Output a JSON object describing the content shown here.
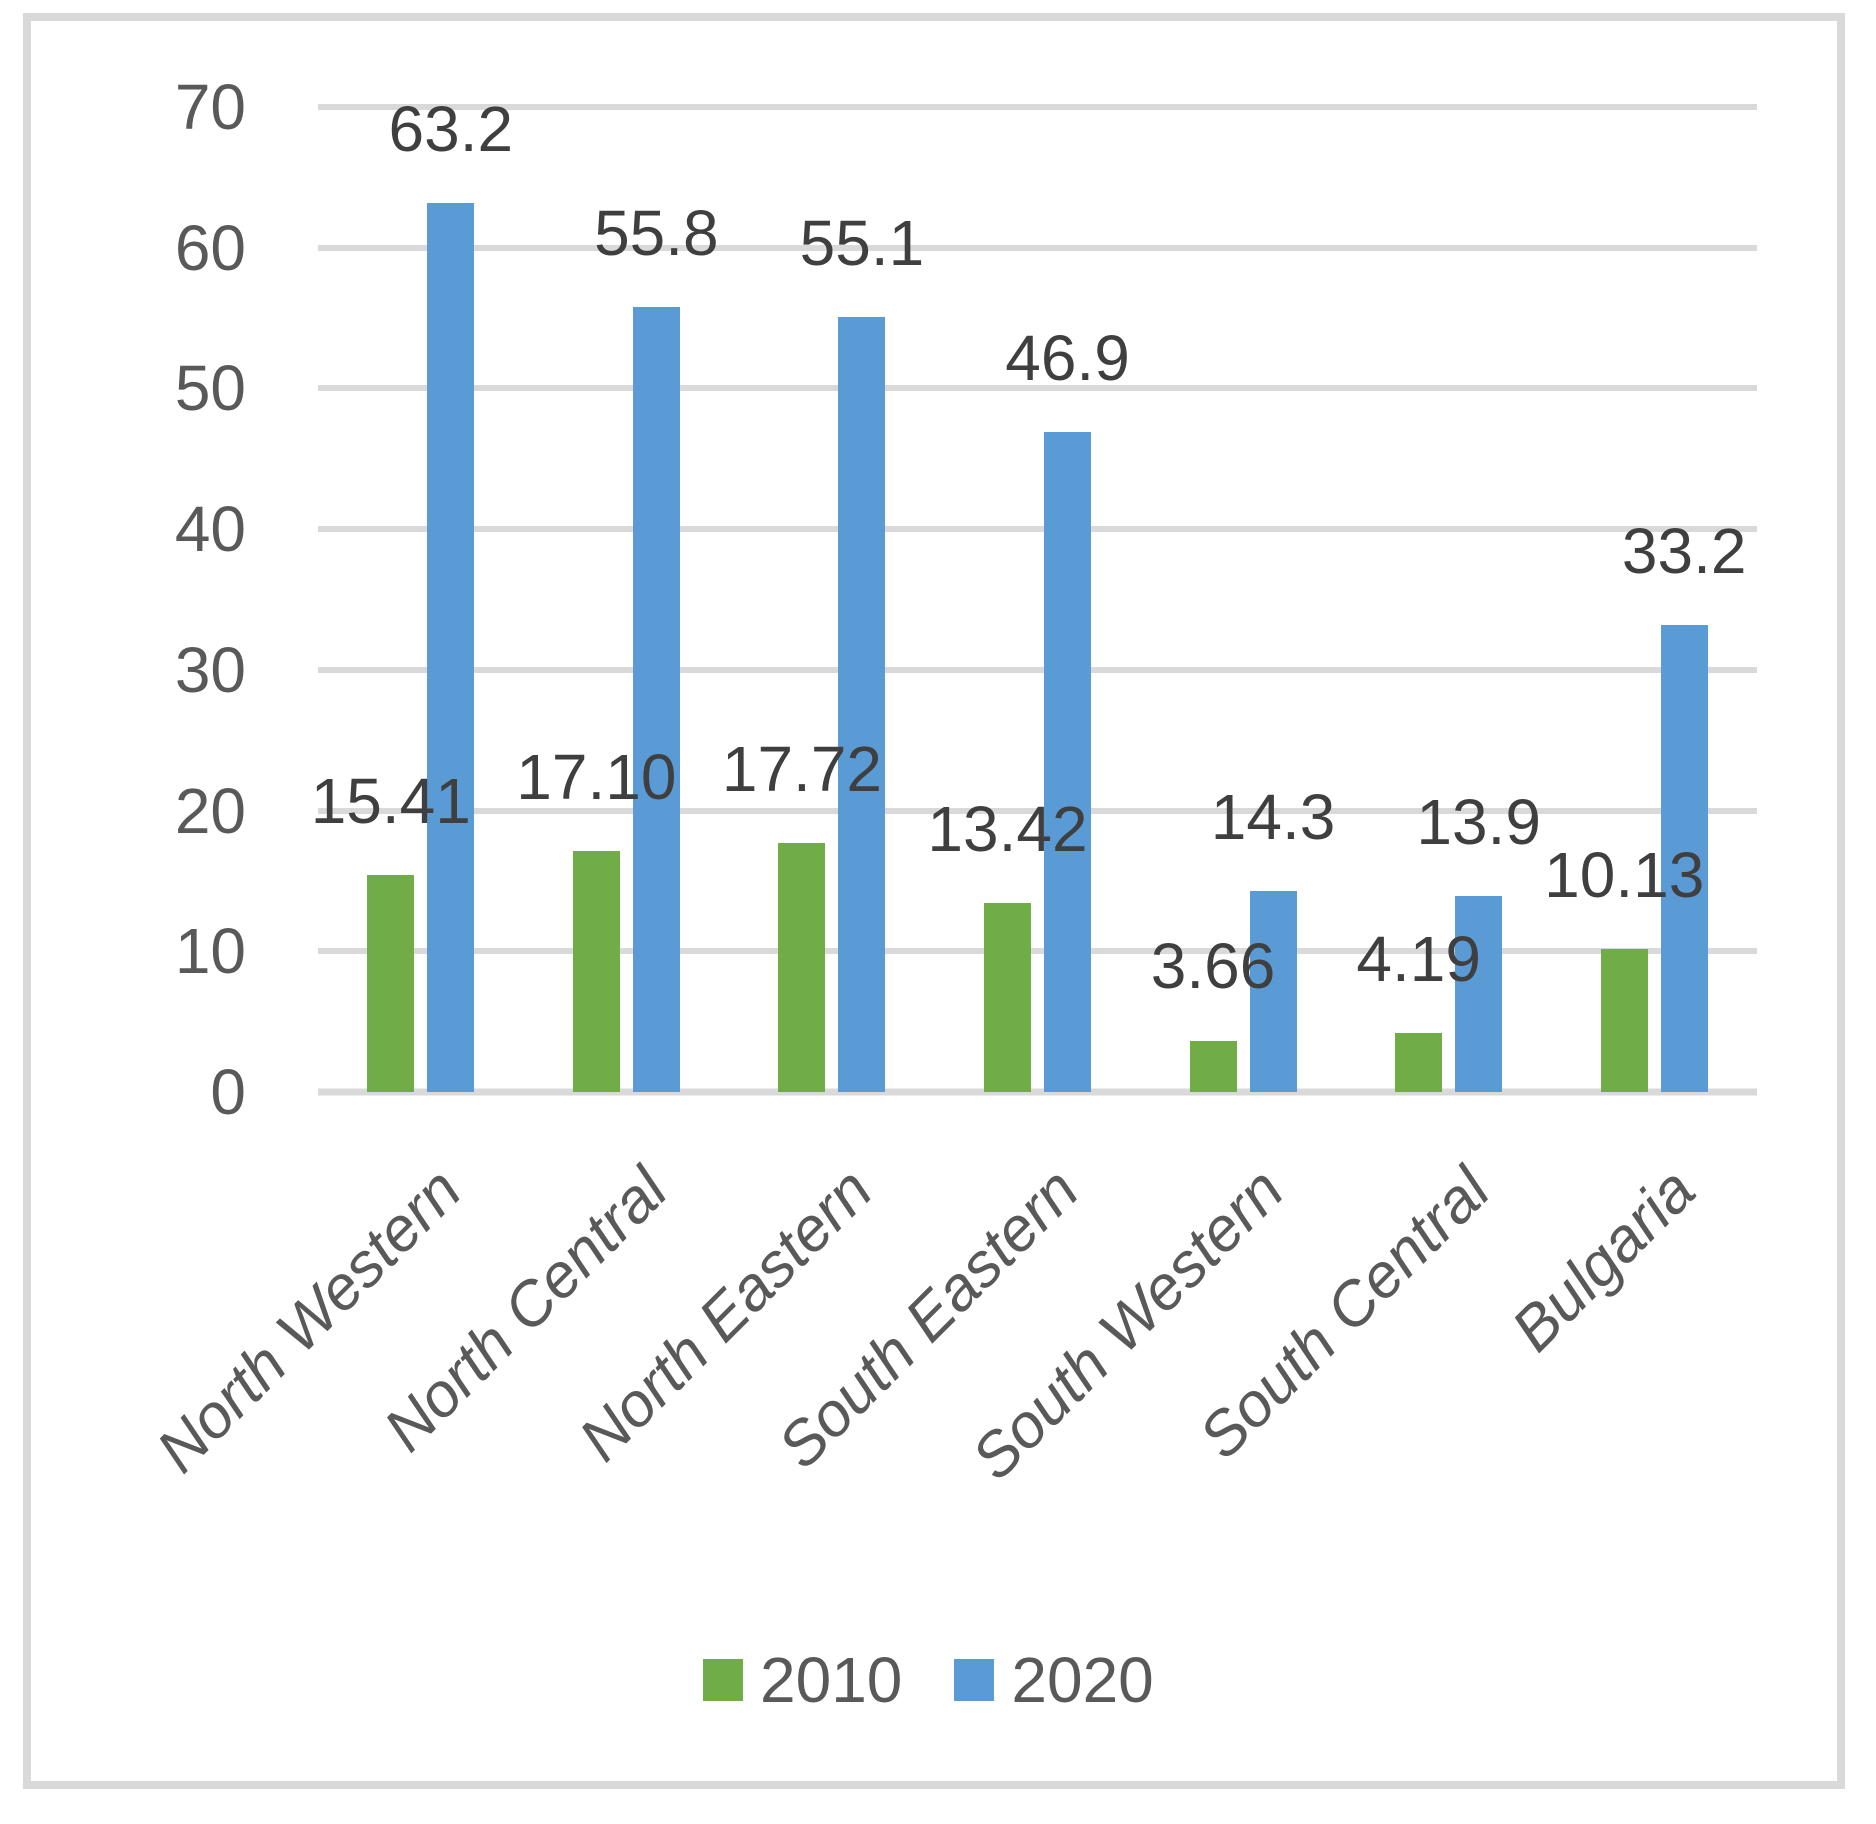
{
  "chart_data": {
    "type": "bar",
    "title": "",
    "xlabel": "",
    "ylabel": "",
    "categories": [
      "North Western",
      "North Central",
      "North Eastern",
      "South Eastern",
      "South Western",
      "South Central",
      "Bulgaria"
    ],
    "series": [
      {
        "name": "2010",
        "color": "#70AD47",
        "values": [
          15.41,
          17.1,
          17.72,
          13.42,
          3.66,
          4.19,
          10.13
        ],
        "labels": [
          "15.41",
          "17.10",
          "17.72",
          "13.42",
          "3.66",
          "4.19",
          "10.13"
        ]
      },
      {
        "name": "2020",
        "color": "#5B9BD5",
        "values": [
          63.2,
          55.8,
          55.1,
          46.9,
          14.3,
          13.9,
          33.2
        ],
        "labels": [
          "63.2",
          "55.8",
          "55.1",
          "46.9",
          "14.3",
          "13.9",
          "33.2"
        ]
      }
    ],
    "ylim": [
      0,
      70
    ],
    "ytick_interval": 10,
    "yticks": [
      "0",
      "10",
      "20",
      "30",
      "40",
      "50",
      "60",
      "70"
    ],
    "grid": true,
    "legend_position": "bottom-center",
    "colors": {
      "gridline": "#d9d9d9",
      "axis_line": "#d9d9d9",
      "tick_text": "#595959",
      "data_label_text": "#3f3f3f",
      "category_text": "#595959",
      "frame_border": "#d9d9d9",
      "background": "#ffffff"
    }
  }
}
